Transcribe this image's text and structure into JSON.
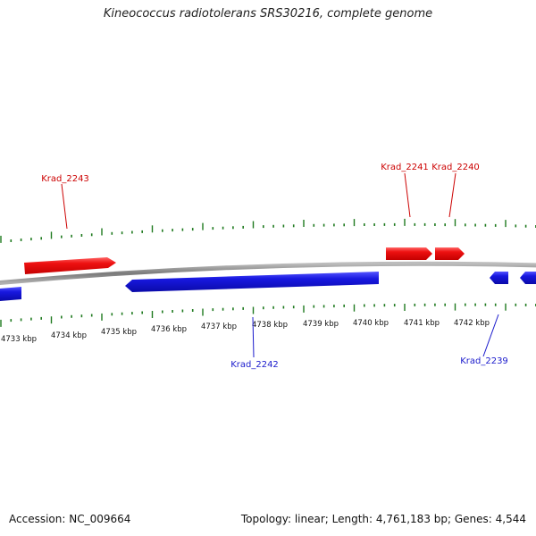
{
  "title": "Kineococcus radiotolerans SRS30216, complete genome",
  "footer": {
    "accession": "Accession: NC_009664",
    "summary": "Topology: linear; Length: 4,761,183 bp; Genes: 4,544"
  },
  "colors": {
    "forward_gene": "#ee1111",
    "reverse_gene": "#1818e0",
    "backbone": "#8a8a8a",
    "ticks": "#1f7a1f",
    "forward_label": "#cc0000",
    "reverse_label": "#1a1acc"
  },
  "axis": {
    "unit": "kbp",
    "labels": [
      "4733 kbp",
      "4734 kbp",
      "4735 kbp",
      "4736 kbp",
      "4737 kbp",
      "4738 kbp",
      "4739 kbp",
      "4740 kbp",
      "4741 kbp",
      "4742 kbp"
    ]
  },
  "genes": [
    {
      "id": "Krad_2243",
      "strand": "forward",
      "label": "Krad_2243"
    },
    {
      "id": "Krad_2241",
      "strand": "forward",
      "label": "Krad_2241"
    },
    {
      "id": "Krad_2240",
      "strand": "forward",
      "label": "Krad_2240"
    },
    {
      "id": "Krad_2242",
      "strand": "reverse",
      "label": "Krad_2242"
    },
    {
      "id": "Krad_2239",
      "strand": "reverse",
      "label": "Krad_2239"
    },
    {
      "id": "unlabeled-left",
      "strand": "reverse",
      "label": ""
    },
    {
      "id": "unlabeled-right-1",
      "strand": "reverse",
      "label": ""
    },
    {
      "id": "unlabeled-right-2",
      "strand": "reverse",
      "label": ""
    }
  ]
}
